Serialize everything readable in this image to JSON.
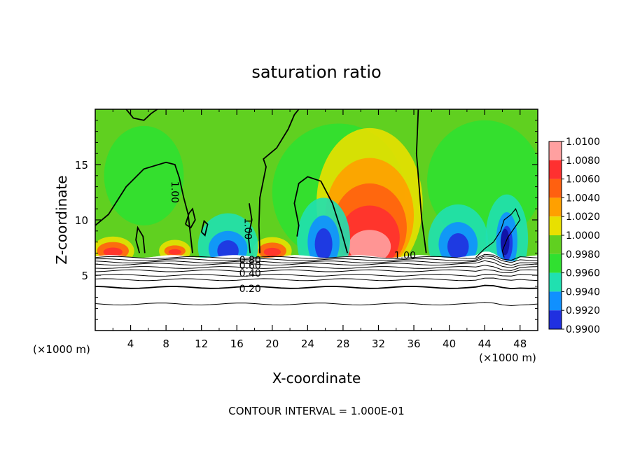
{
  "chart_data": {
    "type": "heatmap",
    "title": "saturation ratio",
    "xlabel": "X-coordinate",
    "ylabel": "Z-coordinate",
    "x_unit_left": "(×1000 m)",
    "x_unit_right": "(×1000 m)",
    "xlim": [
      0,
      50
    ],
    "ylim": [
      0,
      20
    ],
    "x_ticks": [
      4,
      8,
      12,
      16,
      20,
      24,
      28,
      32,
      36,
      40,
      44,
      48
    ],
    "y_ticks": [
      5,
      10,
      15
    ],
    "colorbar": {
      "levels": [
        "1.0100",
        "1.0080",
        "1.0060",
        "1.0040",
        "1.0020",
        "1.0000",
        "0.9980",
        "0.9960",
        "0.9940",
        "0.9920",
        "0.9900"
      ],
      "colors": [
        "#ffa0a0",
        "#ff3030",
        "#ff6010",
        "#ffa000",
        "#e8e000",
        "#60d020",
        "#30e030",
        "#20e0b0",
        "#1090ff",
        "#2030e0",
        "#1010a0",
        "#800080"
      ]
    },
    "background_value": 1.0,
    "features": [
      {
        "name": "moist-plume",
        "x": 31,
        "z_peak": 9,
        "max": 1.0065
      },
      {
        "name": "surface-peak",
        "x": 2,
        "z_peak": 7,
        "max": 1.006
      },
      {
        "name": "surface-peak",
        "x": 20,
        "z_peak": 7,
        "max": 1.006
      },
      {
        "name": "dry-pocket",
        "x": 15,
        "z_peak": 7,
        "min": 0.993
      },
      {
        "name": "dry-pocket",
        "x": 26,
        "z_peak": 8,
        "min": 0.993
      },
      {
        "name": "dry-pocket",
        "x": 41,
        "z_peak": 8,
        "min": 0.994
      },
      {
        "name": "dry-pocket",
        "x": 46,
        "z_peak": 8,
        "min": 0.991
      }
    ],
    "contour_labels": [
      {
        "text": "1.00",
        "x": 9,
        "z": 12.5,
        "rotate": 90
      },
      {
        "text": "1.00",
        "x": 17.3,
        "z": 9.2,
        "rotate": 90
      },
      {
        "text": "1.00",
        "x": 35,
        "z": 6.8,
        "rotate": 0
      },
      {
        "text": "0.80",
        "x": 17.5,
        "z": 6.4,
        "rotate": 0
      },
      {
        "text": "0.60",
        "x": 17.5,
        "z": 5.9,
        "rotate": 0
      },
      {
        "text": "0.40",
        "x": 17.5,
        "z": 5.2,
        "rotate": 0
      },
      {
        "text": "0.20",
        "x": 17.5,
        "z": 3.8,
        "rotate": 0
      }
    ],
    "annotation": "CONTOUR INTERVAL = 1.000E-01"
  }
}
